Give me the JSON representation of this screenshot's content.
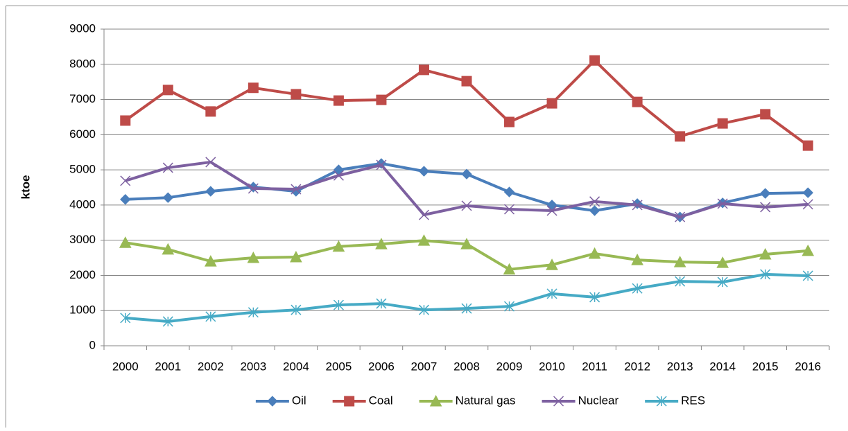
{
  "chart_data": {
    "type": "line",
    "y_label": "ktoe",
    "categories": [
      "2000",
      "2001",
      "2002",
      "2003",
      "2004",
      "2005",
      "2006",
      "2007",
      "2008",
      "2009",
      "2010",
      "2011",
      "2012",
      "2013",
      "2014",
      "2015",
      "2016"
    ],
    "series": [
      {
        "name": "Oil",
        "color": "#4a7ebb",
        "marker": "diamond",
        "values": [
          4160,
          4210,
          4390,
          4510,
          4390,
          5000,
          5180,
          4960,
          4880,
          4370,
          4000,
          3840,
          4040,
          3660,
          4060,
          4330,
          4350
        ]
      },
      {
        "name": "Coal",
        "color": "#be4b48",
        "marker": "square",
        "values": [
          6400,
          7270,
          6660,
          7330,
          7150,
          6970,
          6990,
          7840,
          7520,
          6360,
          6890,
          8110,
          6930,
          5950,
          6320,
          6580,
          5690
        ]
      },
      {
        "name": "Natural gas",
        "color": "#98b954",
        "marker": "triangle",
        "values": [
          2930,
          2740,
          2400,
          2500,
          2520,
          2820,
          2890,
          2990,
          2890,
          2170,
          2300,
          2620,
          2440,
          2380,
          2360,
          2600,
          2700
        ]
      },
      {
        "name": "Nuclear",
        "color": "#7d60a0",
        "marker": "x",
        "values": [
          4690,
          5060,
          5220,
          4470,
          4450,
          4840,
          5140,
          3720,
          3980,
          3880,
          3840,
          4100,
          4000,
          3660,
          4040,
          3940,
          4020
        ]
      },
      {
        "name": "RES",
        "color": "#46aac5",
        "marker": "star",
        "values": [
          790,
          690,
          830,
          950,
          1020,
          1160,
          1200,
          1020,
          1060,
          1120,
          1480,
          1380,
          1630,
          1830,
          1810,
          2030,
          1990
        ]
      }
    ],
    "ylim": [
      0,
      9000
    ],
    "yticks": [
      0,
      1000,
      2000,
      3000,
      4000,
      5000,
      6000,
      7000,
      8000,
      9000
    ],
    "grid": true,
    "legend": "bottom"
  }
}
